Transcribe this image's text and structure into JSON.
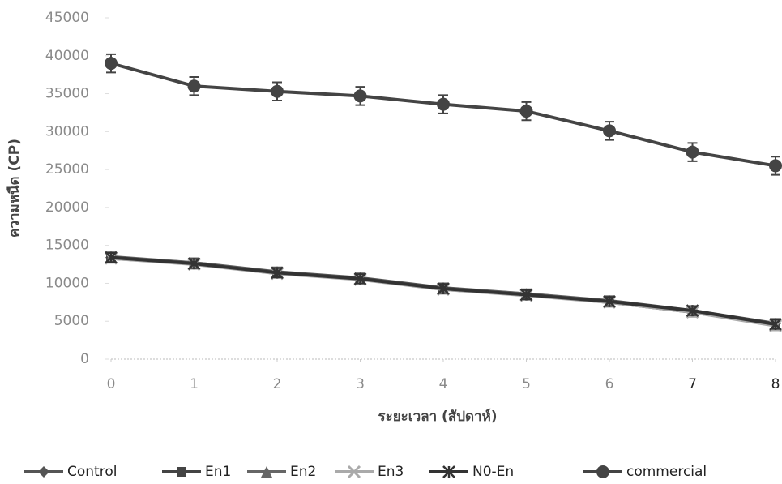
{
  "chart_data": {
    "type": "line",
    "x_label": "ระยะเวลา (สัปดาห์)",
    "y_label": "ความหนืด (CP)",
    "x": [
      0,
      1,
      2,
      3,
      4,
      5,
      6,
      7,
      8
    ],
    "xlim": [
      0,
      8
    ],
    "xticks": [
      0,
      1,
      2,
      3,
      4,
      5,
      6,
      7,
      8
    ],
    "ylim": [
      0,
      45000
    ],
    "yticks": [
      0,
      5000,
      10000,
      15000,
      20000,
      25000,
      30000,
      35000,
      40000,
      45000
    ],
    "series": [
      {
        "name": "Control",
        "color": "#555555",
        "marker": "diamond",
        "values": [
          13400,
          12700,
          11500,
          10700,
          9400,
          8600,
          7700,
          6400,
          4700
        ],
        "errors": [
          600,
          600,
          600,
          600,
          600,
          600,
          600,
          600,
          600
        ]
      },
      {
        "name": "En1",
        "color": "#444444",
        "marker": "square",
        "values": [
          13300,
          12600,
          11300,
          10600,
          9200,
          8500,
          7500,
          6200,
          4500
        ],
        "errors": [
          600,
          600,
          600,
          600,
          600,
          600,
          600,
          600,
          600
        ]
      },
      {
        "name": "En2",
        "color": "#666666",
        "marker": "triangle",
        "values": [
          13500,
          12700,
          11400,
          10600,
          9300,
          8600,
          7600,
          6300,
          4600
        ],
        "errors": [
          600,
          600,
          600,
          600,
          600,
          600,
          600,
          600,
          600
        ]
      },
      {
        "name": "En3",
        "color": "#aaaaaa",
        "marker": "cross",
        "values": [
          13300,
          12500,
          11300,
          10500,
          9200,
          8400,
          7500,
          6200,
          4400
        ],
        "errors": [
          600,
          600,
          600,
          600,
          600,
          600,
          600,
          600,
          600
        ]
      },
      {
        "name": "N0-En",
        "color": "#333333",
        "marker": "asterisk",
        "values": [
          13400,
          12600,
          11400,
          10600,
          9300,
          8500,
          7600,
          6400,
          4600
        ],
        "errors": [
          600,
          600,
          600,
          600,
          600,
          600,
          600,
          600,
          600
        ]
      },
      {
        "name": "commercial",
        "color": "#444444",
        "marker": "circle",
        "values": [
          39000,
          36000,
          35300,
          34700,
          33600,
          32700,
          30100,
          27300,
          25500
        ],
        "errors": [
          1200,
          1200,
          1200,
          1200,
          1200,
          1200,
          1200,
          1200,
          1200
        ]
      }
    ]
  }
}
